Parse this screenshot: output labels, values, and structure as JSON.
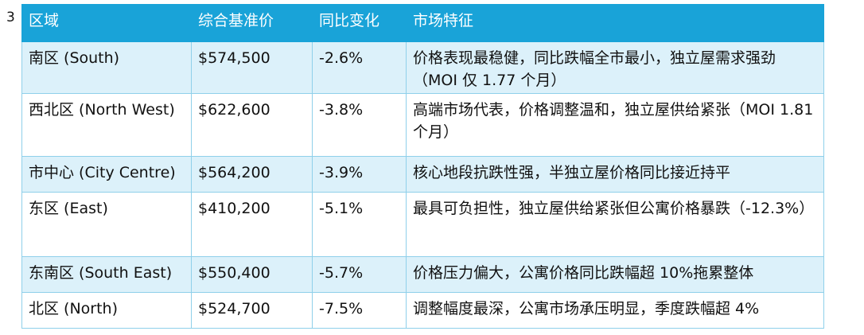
{
  "page_marker": "3",
  "table": {
    "headers": [
      "区域",
      "综合基准价",
      "同比变化",
      "市场特征"
    ],
    "rows": [
      {
        "region": "南区 (South)",
        "price": "$574,500",
        "change": "-2.6%",
        "feature": "价格表现最稳健，同比跌幅全市最小，独立屋需求强劲（MOI 仅 1.77 个月）"
      },
      {
        "region": "西北区 (North West)",
        "price": "$622,600",
        "change": "-3.8%",
        "feature": "高端市场代表，价格调整温和，独立屋供给紧张（MOI 1.81 个月）"
      },
      {
        "region": "市中心 (City Centre)",
        "price": "$564,200",
        "change": "-3.9%",
        "feature": "核心地段抗跌性强，半独立屋价格同比接近持平"
      },
      {
        "region": "东区 (East)",
        "price": "$410,200",
        "change": "-5.1%",
        "feature": "最具可负担性，独立屋供给紧张但公寓价格暴跌（-12.3%）"
      },
      {
        "region": "东南区 (South East)",
        "price": "$550,400",
        "change": "-5.7%",
        "feature": "价格压力偏大，公寓价格同比跌幅超 10%拖累整体"
      },
      {
        "region": "北区 (North)",
        "price": "$524,700",
        "change": "-7.5%",
        "feature": "调整幅度最深，公寓市场承压明显，季度跌幅超 4%"
      }
    ]
  }
}
